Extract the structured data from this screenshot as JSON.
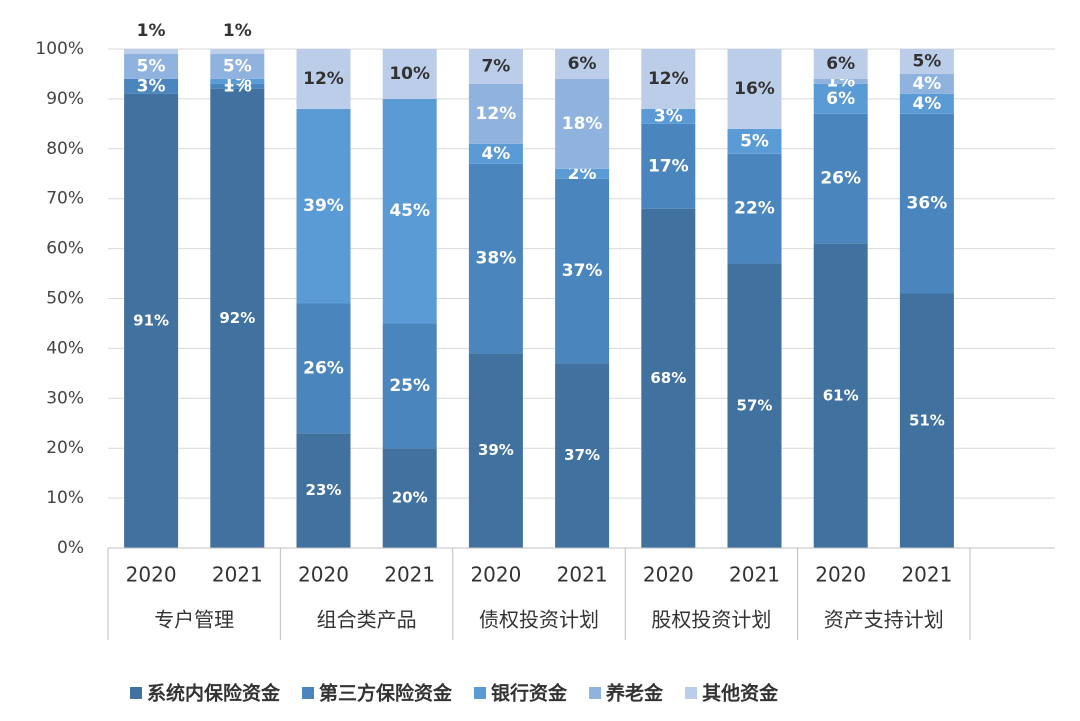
{
  "chart_data": {
    "type": "stacked_bar",
    "categories": [
      "2020",
      "2021",
      "2020",
      "2021",
      "2020",
      "2021",
      "2020",
      "2021",
      "2020",
      "2021"
    ],
    "groups": [
      "专户管理",
      "组合类产品",
      "债权投资计划",
      "股权投资计划",
      "资产支持计划"
    ],
    "ylim": [
      0,
      100
    ],
    "yticks": [
      {
        "value": 0,
        "label": "0%"
      },
      {
        "value": 10,
        "label": "10%"
      },
      {
        "value": 20,
        "label": "20%"
      },
      {
        "value": 30,
        "label": "30%"
      },
      {
        "value": 40,
        "label": "40%"
      },
      {
        "value": 50,
        "label": "50%"
      },
      {
        "value": 60,
        "label": "60%"
      },
      {
        "value": 70,
        "label": "70%"
      },
      {
        "value": 80,
        "label": "80%"
      },
      {
        "value": 90,
        "label": "90%"
      },
      {
        "value": 100,
        "label": "100%"
      }
    ],
    "grid": true,
    "legend": "bottom",
    "series": [
      {
        "name": "系统内保险资金",
        "color": "#41729f",
        "values": [
          91,
          92,
          23,
          20,
          39,
          37,
          68,
          57,
          61,
          51
        ],
        "value_labels": [
          "91%",
          "92%",
          "23%",
          "20%",
          "39%",
          "37%",
          "68%",
          "57%",
          "61%",
          "51%"
        ]
      },
      {
        "name": "第三方保险资金",
        "color": "#4a86bd",
        "values": [
          3,
          1,
          26,
          25,
          38,
          37,
          17,
          22,
          26,
          36
        ],
        "value_labels": [
          "3%",
          "1%",
          "26%",
          "25%",
          "38%",
          "37%",
          "17%",
          "22%",
          "26%",
          "36%"
        ]
      },
      {
        "name": "银行资金",
        "color": "#5b9bd5",
        "values": [
          null,
          1,
          39,
          45,
          4,
          2,
          3,
          5,
          6,
          4
        ],
        "value_labels": [
          null,
          "1%",
          "39%",
          "45%",
          "4%",
          "2%",
          "3%",
          "5%",
          "6%",
          "4%"
        ]
      },
      {
        "name": "养老金",
        "color": "#8fb3de",
        "values": [
          5,
          5,
          null,
          null,
          12,
          18,
          null,
          null,
          1,
          4
        ],
        "value_labels": [
          "5%",
          "5%",
          null,
          null,
          "12%",
          "18%",
          null,
          null,
          "1%",
          "4%"
        ]
      },
      {
        "name": "其他资金",
        "color": "#bccde9",
        "values": [
          1,
          1,
          12,
          10,
          7,
          6,
          12,
          16,
          6,
          5
        ],
        "value_labels": [
          "1%",
          "1%",
          "12%",
          "10%",
          "7%",
          "6%",
          "12%",
          "16%",
          "6%",
          "5%"
        ]
      }
    ]
  }
}
